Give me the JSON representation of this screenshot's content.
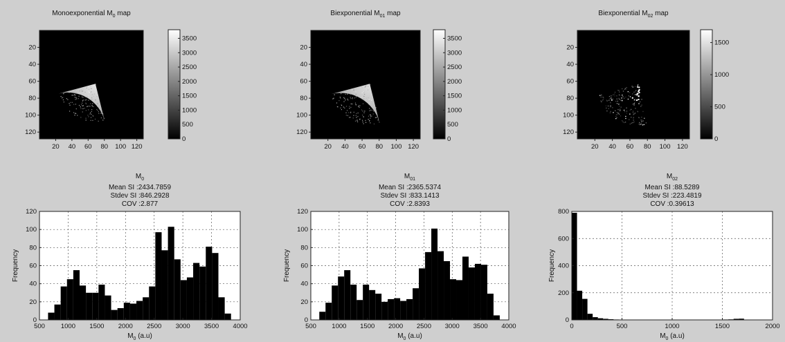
{
  "chart_data": [
    {
      "type": "heatmap",
      "title": "Monoexponential M0 map",
      "title_parts": [
        "Monoexponential M",
        "0",
        " map"
      ],
      "image_size": [
        128,
        128
      ],
      "x_ticks": [
        "20",
        "40",
        "60",
        "80",
        "100",
        "120"
      ],
      "y_ticks": [
        "20",
        "40",
        "60",
        "80",
        "100",
        "120"
      ],
      "colormap": "gray",
      "colorbar": {
        "min": 0,
        "max": 3800,
        "ticks": [
          0,
          500,
          1000,
          1500,
          2000,
          2500,
          3000,
          3500
        ]
      },
      "region": {
        "type": "wedge",
        "apex": [
          69,
          63
        ],
        "radius": 47,
        "start_deg": 195,
        "end_deg": 284,
        "edge_intensity": 0.55,
        "center_intensity": 0.9
      }
    },
    {
      "type": "heatmap",
      "title": "Biexponential M01 map",
      "title_parts": [
        "Biexponential M",
        "01",
        " map"
      ],
      "image_size": [
        128,
        128
      ],
      "x_ticks": [
        "20",
        "40",
        "60",
        "80",
        "100",
        "120"
      ],
      "y_ticks": [
        "20",
        "40",
        "60",
        "80",
        "100",
        "120"
      ],
      "colormap": "gray",
      "colorbar": {
        "min": 0,
        "max": 3800,
        "ticks": [
          0,
          500,
          1000,
          1500,
          2000,
          2500,
          3000,
          3500
        ]
      },
      "region": {
        "type": "wedge",
        "apex": [
          69,
          63
        ],
        "radius": 47,
        "start_deg": 195,
        "end_deg": 284,
        "edge_intensity": 0.55,
        "center_intensity": 0.88
      }
    },
    {
      "type": "heatmap",
      "title": "Biexponential M02 map",
      "title_parts": [
        "Biexponential M",
        "02",
        " map"
      ],
      "image_size": [
        128,
        128
      ],
      "x_ticks": [
        "20",
        "40",
        "60",
        "80",
        "100",
        "120"
      ],
      "y_ticks": [
        "20",
        "40",
        "60",
        "80",
        "100",
        "120"
      ],
      "colormap": "gray",
      "colorbar": {
        "min": 0,
        "max": 1700,
        "ticks": [
          0,
          500,
          1000,
          1500
        ]
      },
      "region": {
        "type": "sparse-wedge",
        "apex": [
          69,
          63
        ],
        "radius": 47,
        "start_deg": 195,
        "end_deg": 284
      }
    },
    {
      "type": "bar",
      "title_parts": [
        "M",
        "0"
      ],
      "stats": [
        "Mean SI :2434.7859",
        "Stdev SI :846.2928",
        "COV :2.877"
      ],
      "xlabel_parts": [
        "M",
        "0",
        " (a.u)"
      ],
      "ylabel": "Frequency",
      "xlim": [
        500,
        4000
      ],
      "ylim": [
        0,
        120
      ],
      "x_ticks": [
        500,
        1000,
        1500,
        2000,
        2500,
        3000,
        3500,
        4000
      ],
      "y_ticks": [
        0,
        20,
        40,
        60,
        80,
        100,
        120
      ],
      "grid": true,
      "bin_start": 650,
      "bin_width": 110,
      "values": [
        8,
        17,
        37,
        45,
        55,
        38,
        30,
        30,
        39,
        27,
        11,
        13,
        19,
        18,
        21,
        25,
        37,
        97,
        77,
        103,
        67,
        44,
        47,
        63,
        59,
        81,
        74,
        25,
        7
      ]
    },
    {
      "type": "bar",
      "title_parts": [
        "M",
        "01"
      ],
      "stats": [
        "Mean SI :2365.5374",
        "Stdev SI :833.1413",
        "COV :2.8393"
      ],
      "xlabel_parts": [
        "M",
        "0",
        " (a.u)"
      ],
      "ylabel": "Frequency",
      "xlim": [
        500,
        4000
      ],
      "ylim": [
        0,
        120
      ],
      "x_ticks": [
        500,
        1000,
        1500,
        2000,
        2500,
        3000,
        3500,
        4000
      ],
      "y_ticks": [
        0,
        20,
        40,
        60,
        80,
        100,
        120
      ],
      "grid": true,
      "bin_start": 650,
      "bin_width": 110,
      "values": [
        9,
        19,
        38,
        48,
        55,
        39,
        22,
        39,
        33,
        29,
        20,
        23,
        24,
        21,
        23,
        35,
        57,
        75,
        101,
        76,
        65,
        45,
        44,
        70,
        58,
        62,
        61,
        29,
        5
      ]
    },
    {
      "type": "bar",
      "title_parts": [
        "M",
        "02"
      ],
      "stats": [
        "Mean SI :88.5289",
        "Stdev SI :223.4819",
        "COV :0.39613"
      ],
      "xlabel_parts": [
        "M",
        "0",
        " (a.u)"
      ],
      "ylabel": "Frequency",
      "xlim": [
        0,
        2000
      ],
      "ylim": [
        0,
        800
      ],
      "x_ticks": [
        0,
        500,
        1000,
        1500,
        2000
      ],
      "y_ticks": [
        0,
        200,
        400,
        600,
        800
      ],
      "grid": true,
      "bin_start": 0,
      "bin_width": 52,
      "values": [
        790,
        215,
        155,
        45,
        20,
        12,
        8,
        5,
        3,
        2,
        2,
        1,
        1,
        1,
        1,
        0,
        0,
        1,
        1,
        1,
        2,
        1,
        1,
        0,
        0,
        0,
        0,
        0,
        1,
        3,
        4,
        8,
        9
      ]
    }
  ]
}
